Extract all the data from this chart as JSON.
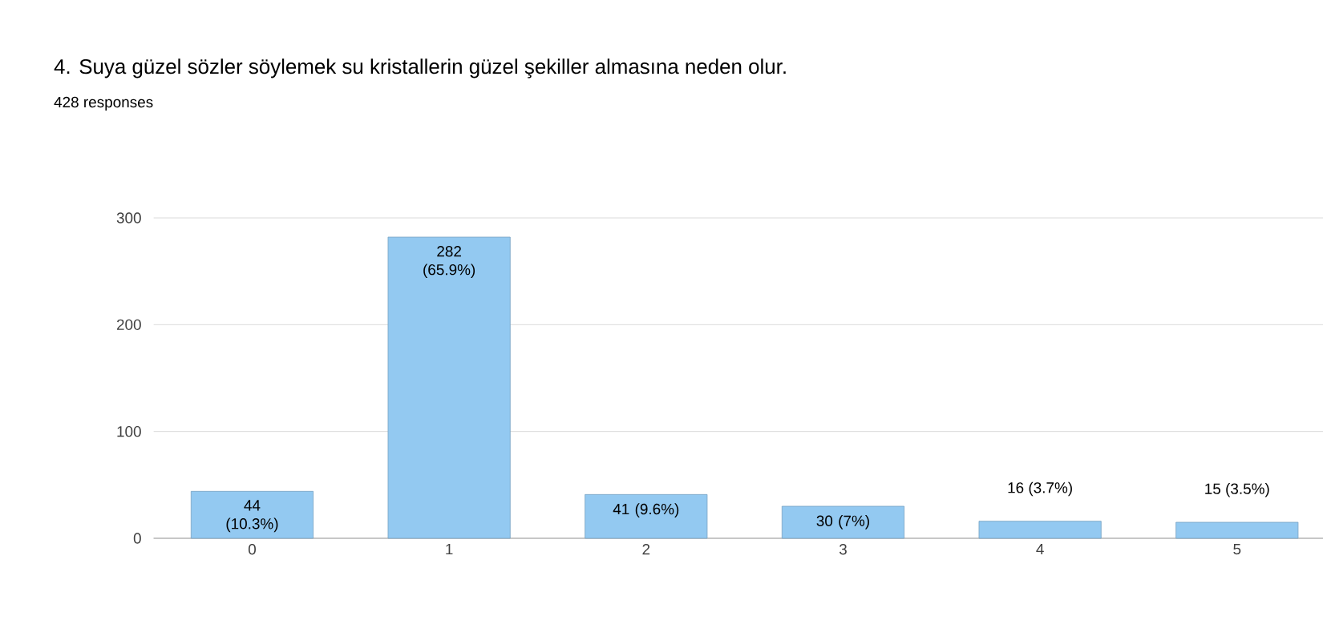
{
  "chart_data": {
    "type": "bar",
    "title": "4. Suya güzel sözler söylemek su kristallerin güzel şekiller almasına neden olur.",
    "subtitle": "428 responses",
    "categories": [
      "0",
      "1",
      "2",
      "3",
      "4",
      "5"
    ],
    "values": [
      44,
      282,
      41,
      30,
      16,
      15
    ],
    "value_labels": [
      "44 (10.3%)",
      "282 (65.9%)",
      "41 (9.6%)",
      "30 (7%)",
      "16 (3.7%)",
      "15 (3.5%)"
    ],
    "color": "#93c9f1",
    "ylim": [
      0,
      300
    ],
    "yticks": [
      0,
      100,
      200,
      300
    ],
    "grid": "y"
  }
}
